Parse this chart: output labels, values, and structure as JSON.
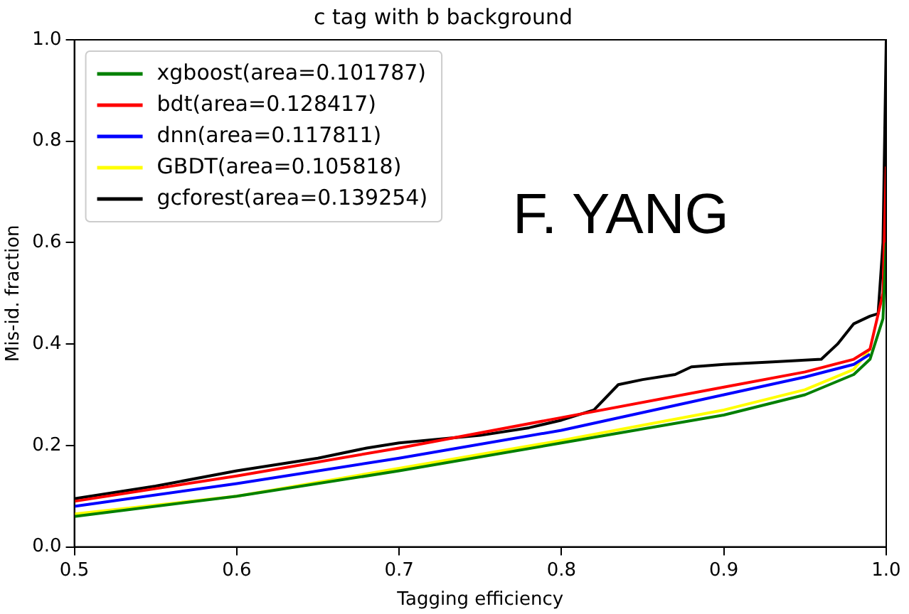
{
  "chart_data": {
    "type": "line",
    "title": "c tag with b background",
    "xlabel": "Tagging efficiency",
    "ylabel": "Mis-id. fraction",
    "xlim": [
      0.5,
      1.0
    ],
    "ylim": [
      0.0,
      1.0
    ],
    "xticks": [
      {
        "value": 0.5,
        "label": "0.5"
      },
      {
        "value": 0.6,
        "label": "0.6"
      },
      {
        "value": 0.7,
        "label": "0.7"
      },
      {
        "value": 0.8,
        "label": "0.8"
      },
      {
        "value": 0.9,
        "label": "0.9"
      },
      {
        "value": 1.0,
        "label": "1.0"
      }
    ],
    "yticks": [
      {
        "value": 0,
        "label": "0.0"
      },
      {
        "value": 0.2,
        "label": "0.2"
      },
      {
        "value": 0.4,
        "label": "0.4"
      },
      {
        "value": 0.6,
        "label": "0.6"
      },
      {
        "value": 0.8,
        "label": "0.8"
      },
      {
        "value": 1.0,
        "label": "1.0"
      }
    ],
    "grid": false,
    "legend": "top left",
    "marker": "none",
    "line_style": "solid",
    "annotations": [
      "F. YANG"
    ],
    "series": [
      {
        "name": "xgboost(area=0.101787)",
        "color": "#008000",
        "x": [
          0.5,
          0.6,
          0.7,
          0.8,
          0.9,
          0.95,
          0.98,
          0.99,
          0.998,
          1.0
        ],
        "values": [
          0.06,
          0.1,
          0.15,
          0.205,
          0.26,
          0.3,
          0.34,
          0.37,
          0.45,
          0.6
        ]
      },
      {
        "name": "bdt(area=0.128417)",
        "color": "#ff0000",
        "x": [
          0.5,
          0.6,
          0.7,
          0.8,
          0.9,
          0.95,
          0.98,
          0.99,
          0.998,
          1.0
        ],
        "values": [
          0.09,
          0.14,
          0.195,
          0.255,
          0.315,
          0.345,
          0.37,
          0.39,
          0.5,
          0.75
        ]
      },
      {
        "name": "dnn(area=0.117811)",
        "color": "#0000ff",
        "x": [
          0.5,
          0.6,
          0.7,
          0.8,
          0.9,
          0.95,
          0.98,
          0.99
        ],
        "values": [
          0.08,
          0.125,
          0.175,
          0.23,
          0.3,
          0.335,
          0.36,
          0.38
        ]
      },
      {
        "name": "GBDT(area=0.105818)",
        "color": "#ffff00",
        "x": [
          0.5,
          0.6,
          0.7,
          0.8,
          0.9,
          0.95,
          0.98,
          0.99
        ],
        "values": [
          0.065,
          0.1,
          0.155,
          0.21,
          0.27,
          0.31,
          0.35,
          0.39
        ]
      },
      {
        "name": "gcforest(area=0.139254)",
        "color": "#000000",
        "x": [
          0.5,
          0.55,
          0.6,
          0.65,
          0.68,
          0.7,
          0.75,
          0.78,
          0.8,
          0.82,
          0.835,
          0.85,
          0.87,
          0.88,
          0.9,
          0.93,
          0.96,
          0.97,
          0.98,
          0.99,
          0.995,
          0.998,
          1.0
        ],
        "values": [
          0.095,
          0.12,
          0.15,
          0.175,
          0.195,
          0.205,
          0.22,
          0.235,
          0.25,
          0.27,
          0.32,
          0.33,
          0.34,
          0.355,
          0.36,
          0.365,
          0.37,
          0.4,
          0.44,
          0.455,
          0.46,
          0.6,
          1.0
        ]
      }
    ]
  }
}
